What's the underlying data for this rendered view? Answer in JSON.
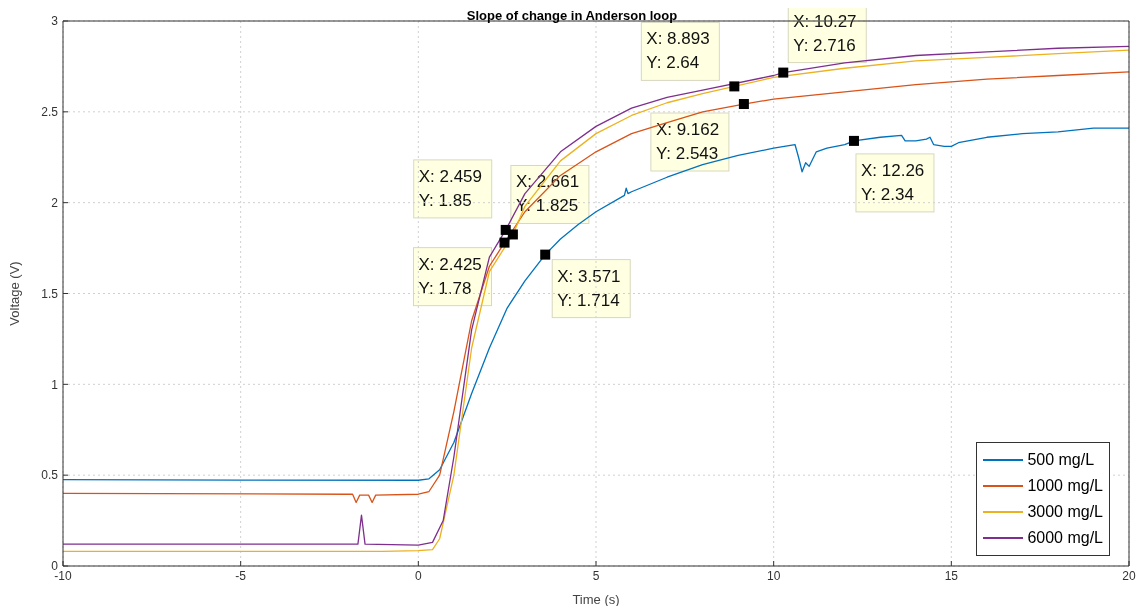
{
  "chart_data": {
    "type": "line",
    "title": "Slope of change in Anderson loop",
    "xlabel": "Time (s)",
    "ylabel": "Voltage (V)",
    "xlim": [
      -10,
      20
    ],
    "xticks": [
      -10,
      -5,
      0,
      5,
      10,
      15,
      20
    ],
    "ylim": [
      0,
      3
    ],
    "yticks": [
      0,
      0.5,
      1,
      1.5,
      2,
      2.5,
      3
    ],
    "grid": true,
    "legend": "bottom right",
    "marker": "none",
    "line_style": "solid",
    "series": [
      {
        "name": "500 mg/L",
        "color": "#0072bd",
        "x": [
          -10,
          -5,
          0,
          0.3,
          0.6,
          1,
          1.5,
          2,
          2.5,
          3,
          3.571,
          4,
          4.5,
          5,
          5.8,
          5.85,
          5.9,
          6,
          7,
          8,
          9,
          10,
          10.6,
          10.7,
          10.8,
          10.9,
          11,
          11.2,
          11.5,
          12,
          12.26,
          13,
          13.6,
          13.7,
          14,
          14.3,
          14.4,
          14.5,
          14.8,
          15,
          15.2,
          16,
          17,
          18,
          19,
          20
        ],
        "values": [
          0.475,
          0.473,
          0.472,
          0.48,
          0.53,
          0.68,
          0.95,
          1.2,
          1.42,
          1.57,
          1.714,
          1.8,
          1.88,
          1.95,
          2.04,
          2.08,
          2.05,
          2.06,
          2.14,
          2.21,
          2.26,
          2.3,
          2.32,
          2.25,
          2.17,
          2.22,
          2.2,
          2.28,
          2.3,
          2.32,
          2.34,
          2.36,
          2.37,
          2.34,
          2.34,
          2.35,
          2.36,
          2.32,
          2.31,
          2.31,
          2.33,
          2.36,
          2.38,
          2.39,
          2.41,
          2.41
        ]
      },
      {
        "name": "1000 mg/L",
        "color": "#d95319",
        "x": [
          -10,
          -2,
          -1.85,
          -1.75,
          -1.65,
          -1.4,
          -1.3,
          -1.2,
          0,
          0.3,
          0.6,
          1,
          1.5,
          2,
          2.425,
          3,
          4,
          5,
          6,
          7,
          8,
          9.162,
          10,
          12,
          14,
          16,
          18,
          20
        ],
        "values": [
          0.4,
          0.395,
          0.395,
          0.35,
          0.39,
          0.39,
          0.35,
          0.39,
          0.395,
          0.41,
          0.5,
          0.85,
          1.35,
          1.65,
          1.78,
          1.95,
          2.15,
          2.28,
          2.38,
          2.44,
          2.5,
          2.543,
          2.57,
          2.61,
          2.65,
          2.68,
          2.7,
          2.72
        ]
      },
      {
        "name": "3000 mg/L",
        "color": "#edb120",
        "x": [
          -10,
          -1,
          0,
          0.4,
          0.6,
          1,
          1.5,
          2,
          2.661,
          3,
          4,
          5,
          6,
          7,
          8,
          8.893,
          10,
          12,
          14,
          16,
          18,
          20
        ],
        "values": [
          0.08,
          0.08,
          0.085,
          0.09,
          0.15,
          0.5,
          1.2,
          1.62,
          1.825,
          1.98,
          2.23,
          2.38,
          2.48,
          2.55,
          2.6,
          2.64,
          2.69,
          2.74,
          2.78,
          2.8,
          2.82,
          2.84
        ]
      },
      {
        "name": "6000 mg/L",
        "color": "#7e2f8e",
        "x": [
          -10,
          -1.7,
          -1.6,
          -1.5,
          0,
          0.4,
          0.7,
          1,
          1.5,
          2,
          2.459,
          3,
          4,
          5,
          6,
          7,
          8,
          10,
          10.27,
          12,
          14,
          16,
          18,
          20
        ],
        "values": [
          0.12,
          0.12,
          0.28,
          0.12,
          0.115,
          0.13,
          0.25,
          0.6,
          1.3,
          1.7,
          1.85,
          2.05,
          2.28,
          2.42,
          2.52,
          2.58,
          2.62,
          2.7,
          2.716,
          2.77,
          2.81,
          2.83,
          2.85,
          2.86
        ]
      }
    ],
    "annotations": [
      {
        "text": "X: 2.459\nY: 1.85",
        "x": 2.459,
        "y": 1.85
      },
      {
        "text": "X: 2.425\nY: 1.78",
        "x": 2.425,
        "y": 1.78
      },
      {
        "text": "X: 2.661\nY: 1.825",
        "x": 2.661,
        "y": 1.825
      },
      {
        "text": "X: 3.571\nY: 1.714",
        "x": 3.571,
        "y": 1.714
      },
      {
        "text": "X: 8.893\nY: 2.64",
        "x": 8.893,
        "y": 2.64
      },
      {
        "text": "X: 9.162\nY: 2.543",
        "x": 9.162,
        "y": 2.543
      },
      {
        "text": "X: 10.27\nY: 2.716",
        "x": 10.27,
        "y": 2.716
      },
      {
        "text": "X: 12.26\nY: 2.34",
        "x": 12.26,
        "y": 2.34
      }
    ]
  }
}
